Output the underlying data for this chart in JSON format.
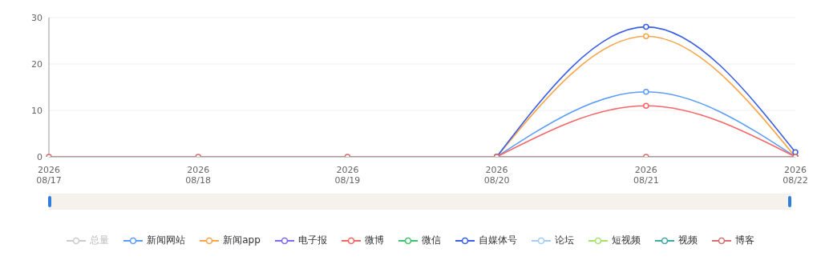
{
  "chart_data": {
    "type": "line",
    "categories": [
      "2026\n08/17",
      "2026\n08/18",
      "2026\n08/19",
      "2026\n08/20",
      "2026\n08/21",
      "2026\n08/22"
    ],
    "ylim": [
      0,
      30
    ],
    "yticks": [
      0,
      10,
      20,
      30
    ],
    "grid": "y",
    "legend": "bottom",
    "marker": "circle",
    "line_style": "solid",
    "series": [
      {
        "name": "总量",
        "color": "#cccccc",
        "values": [
          null,
          null,
          null,
          null,
          null,
          null
        ]
      },
      {
        "name": "新闻网站",
        "color": "#5b9ef7",
        "values": [
          null,
          null,
          null,
          0,
          14,
          0
        ]
      },
      {
        "name": "新闻app",
        "color": "#f8a54b",
        "values": [
          null,
          null,
          null,
          0,
          26,
          0
        ]
      },
      {
        "name": "电子报",
        "color": "#7b6cf4",
        "values": [
          null,
          null,
          null,
          null,
          null,
          null
        ]
      },
      {
        "name": "微博",
        "color": "#f56565",
        "values": [
          null,
          null,
          null,
          0,
          11,
          0
        ]
      },
      {
        "name": "微信",
        "color": "#3ec46a",
        "values": [
          null,
          null,
          null,
          null,
          null,
          null
        ]
      },
      {
        "name": "自媒体号",
        "color": "#3a5ee6",
        "values": [
          null,
          null,
          null,
          0,
          28,
          1
        ]
      },
      {
        "name": "论坛",
        "color": "#a3cdf7",
        "values": [
          null,
          null,
          null,
          null,
          null,
          null
        ]
      },
      {
        "name": "短视频",
        "color": "#a5e26a",
        "values": [
          null,
          null,
          null,
          null,
          null,
          null
        ]
      },
      {
        "name": "视频",
        "color": "#3fa7a7",
        "values": [
          null,
          null,
          null,
          null,
          null,
          null
        ]
      },
      {
        "name": "博客",
        "color": "#d5706d",
        "values": [
          0,
          0,
          0,
          0,
          0,
          0
        ]
      }
    ]
  }
}
